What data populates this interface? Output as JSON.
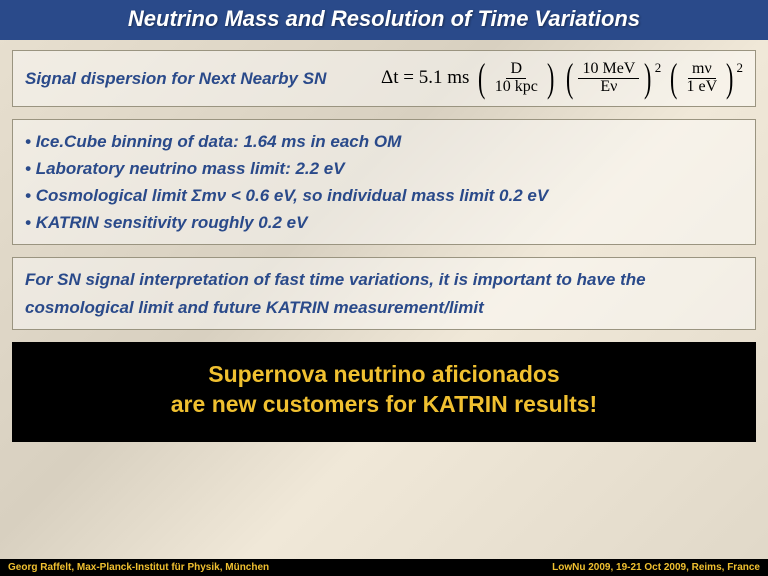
{
  "title": "Neutrino Mass and Resolution of Time Variations",
  "dispersion": {
    "label": "Signal dispersion for Next Nearby SN",
    "dt_prefix": "Δt = 5.1 ms",
    "frac1_num": "D",
    "frac1_den": "10 kpc",
    "frac2_num": "10 MeV",
    "frac2_den": "Eν",
    "frac3_num": "mν",
    "frac3_den": "1 eV",
    "exp": "2"
  },
  "bullets": [
    "Ice.Cube binning of data: 1.64 ms in each OM",
    "Laboratory neutrino mass limit: 2.2 eV",
    "Cosmological limit Σmν < 0.6 eV, so individual mass limit 0.2 eV",
    "KATRIN sensitivity roughly 0.2 eV"
  ],
  "interp": "For SN signal interpretation of fast time variations, it is important to have the cosmological limit and future KATRIN measurement/limit",
  "callout_line1": "Supernova neutrino aficionados",
  "callout_line2": "are new customers for KATRIN results!",
  "footer_left": "Georg Raffelt, Max-Planck-Institut für Physik, München",
  "footer_right": "LowNu 2009, 19-21 Oct 2009, Reims, France"
}
